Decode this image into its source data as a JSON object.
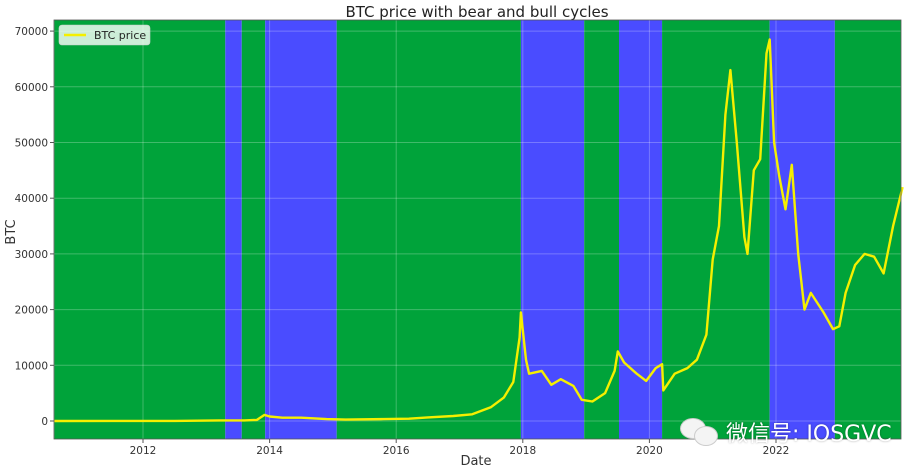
{
  "chart_data": {
    "type": "line",
    "title": "BTC price with bear and bull cycles",
    "xlabel": "Date",
    "ylabel": "BTC",
    "x_ticks": [
      "2012",
      "2014",
      "2016",
      "2018",
      "2020",
      "2022"
    ],
    "y_ticks": [
      "0",
      "10000",
      "20000",
      "30000",
      "40000",
      "50000",
      "60000",
      "70000"
    ],
    "xlim": [
      2010.6,
      2024.0
    ],
    "ylim": [
      -3500,
      72000
    ],
    "grid": true,
    "legend": {
      "position": "upper left",
      "entries": [
        "BTC price"
      ]
    },
    "series": [
      {
        "name": "BTC price",
        "color": "#f5ef00",
        "points": [
          [
            2010.6,
            0
          ],
          [
            2011.5,
            10
          ],
          [
            2012.5,
            10
          ],
          [
            2013.2,
            100
          ],
          [
            2013.6,
            100
          ],
          [
            2013.8,
            200
          ],
          [
            2013.92,
            1100
          ],
          [
            2014.0,
            800
          ],
          [
            2014.2,
            600
          ],
          [
            2014.5,
            600
          ],
          [
            2014.9,
            350
          ],
          [
            2015.2,
            250
          ],
          [
            2015.8,
            350
          ],
          [
            2016.2,
            420
          ],
          [
            2016.5,
            650
          ],
          [
            2016.9,
            900
          ],
          [
            2017.2,
            1200
          ],
          [
            2017.5,
            2500
          ],
          [
            2017.7,
            4200
          ],
          [
            2017.85,
            7000
          ],
          [
            2017.95,
            15000
          ],
          [
            2017.97,
            19500
          ],
          [
            2018.05,
            11000
          ],
          [
            2018.1,
            8500
          ],
          [
            2018.3,
            9000
          ],
          [
            2018.45,
            6500
          ],
          [
            2018.6,
            7500
          ],
          [
            2018.8,
            6300
          ],
          [
            2018.93,
            3800
          ],
          [
            2019.1,
            3500
          ],
          [
            2019.3,
            5000
          ],
          [
            2019.45,
            9000
          ],
          [
            2019.5,
            12500
          ],
          [
            2019.6,
            10500
          ],
          [
            2019.8,
            8500
          ],
          [
            2019.95,
            7200
          ],
          [
            2020.1,
            9500
          ],
          [
            2020.2,
            10200
          ],
          [
            2020.22,
            5500
          ],
          [
            2020.4,
            8500
          ],
          [
            2020.6,
            9500
          ],
          [
            2020.75,
            11000
          ],
          [
            2020.9,
            15500
          ],
          [
            2021.0,
            29000
          ],
          [
            2021.1,
            35000
          ],
          [
            2021.2,
            55000
          ],
          [
            2021.28,
            63000
          ],
          [
            2021.38,
            50000
          ],
          [
            2021.5,
            33000
          ],
          [
            2021.55,
            30000
          ],
          [
            2021.65,
            45000
          ],
          [
            2021.75,
            47000
          ],
          [
            2021.85,
            66000
          ],
          [
            2021.9,
            68500
          ],
          [
            2021.97,
            50000
          ],
          [
            2022.05,
            44000
          ],
          [
            2022.15,
            38000
          ],
          [
            2022.25,
            46000
          ],
          [
            2022.35,
            30000
          ],
          [
            2022.45,
            20000
          ],
          [
            2022.55,
            23000
          ],
          [
            2022.75,
            19500
          ],
          [
            2022.9,
            16500
          ],
          [
            2023.0,
            17000
          ],
          [
            2023.1,
            23000
          ],
          [
            2023.25,
            28000
          ],
          [
            2023.4,
            30000
          ],
          [
            2023.55,
            29500
          ],
          [
            2023.7,
            26500
          ],
          [
            2023.85,
            35000
          ],
          [
            2024.0,
            42000
          ]
        ]
      }
    ],
    "shaded_regions": [
      {
        "from": 2010.6,
        "to": 2013.3,
        "phase": "bull",
        "color": "#00a33a"
      },
      {
        "from": 2013.3,
        "to": 2013.56,
        "phase": "bear",
        "color": "#4a4cff"
      },
      {
        "from": 2013.56,
        "to": 2013.93,
        "phase": "bull",
        "color": "#00a33a"
      },
      {
        "from": 2013.93,
        "to": 2015.06,
        "phase": "bear",
        "color": "#4a4cff"
      },
      {
        "from": 2015.06,
        "to": 2017.97,
        "phase": "bull",
        "color": "#00a33a"
      },
      {
        "from": 2017.97,
        "to": 2018.97,
        "phase": "bear",
        "color": "#4a4cff"
      },
      {
        "from": 2018.97,
        "to": 2019.52,
        "phase": "bull",
        "color": "#00a33a"
      },
      {
        "from": 2019.52,
        "to": 2020.2,
        "phase": "bear",
        "color": "#4a4cff"
      },
      {
        "from": 2020.2,
        "to": 2021.9,
        "phase": "bull",
        "color": "#00a33a"
      },
      {
        "from": 2021.9,
        "to": 2022.93,
        "phase": "bear",
        "color": "#4a4cff"
      },
      {
        "from": 2022.93,
        "to": 2024.0,
        "phase": "bull",
        "color": "#00a33a"
      }
    ]
  },
  "watermark": {
    "text": "微信号: IOSGVC"
  }
}
